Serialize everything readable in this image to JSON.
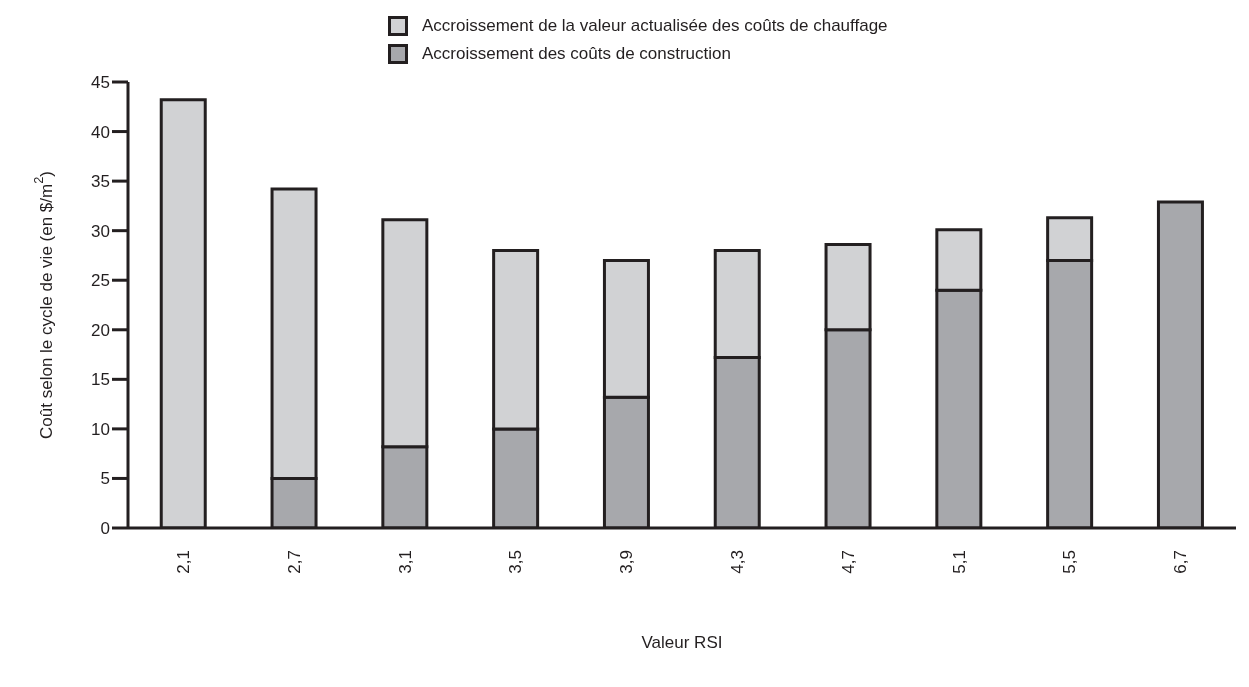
{
  "chart_data": {
    "type": "bar",
    "stacked": true,
    "xlabel": "Valeur RSI",
    "ylabel": "Coût selon le cycle de vie (en $/m$^{2}$)",
    "categories": [
      "2,1",
      "2,7",
      "3,1",
      "3,5",
      "3,9",
      "4,3",
      "4,7",
      "5,1",
      "5,5",
      "6,7"
    ],
    "series": [
      {
        "name": "Accroissement des coûts de construction",
        "color": "#a7a8ac",
        "values": [
          0,
          5,
          8.2,
          10,
          13.2,
          17.2,
          20,
          24,
          27,
          32.9
        ]
      },
      {
        "name": "Accroissement de la valeur actualisée des coûts de chauffage",
        "color": "#d1d2d4",
        "values": [
          43.2,
          29.2,
          22.9,
          18,
          13.8,
          10.8,
          8.6,
          6.1,
          4.3,
          0
        ]
      }
    ],
    "ylim": [
      0,
      45
    ],
    "yticks": [
      0,
      5,
      10,
      15,
      20,
      25,
      30,
      35,
      40,
      45
    ],
    "grid": false,
    "legend": "top right"
  }
}
